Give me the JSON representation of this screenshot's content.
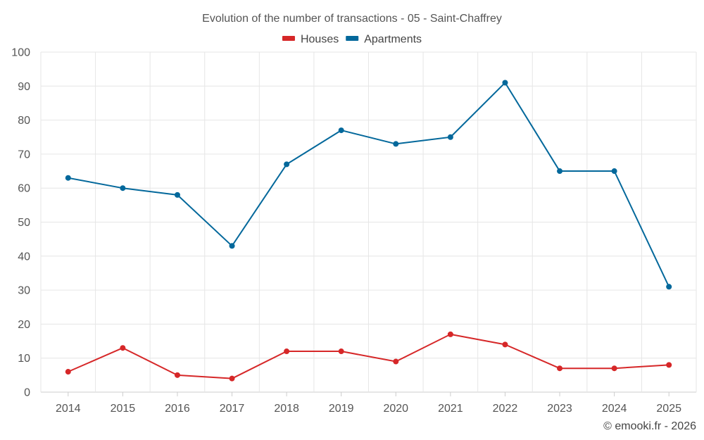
{
  "chart_data": {
    "type": "line",
    "title": "Evolution of the number of transactions - 05 - Saint-Chaffrey",
    "categories": [
      "2014",
      "2015",
      "2016",
      "2017",
      "2018",
      "2019",
      "2020",
      "2021",
      "2022",
      "2023",
      "2024",
      "2025"
    ],
    "series": [
      {
        "name": "Houses",
        "color": "#d62728",
        "values": [
          6,
          13,
          5,
          4,
          12,
          12,
          9,
          17,
          14,
          7,
          7,
          8
        ]
      },
      {
        "name": "Apartments",
        "color": "#03689b",
        "values": [
          63,
          60,
          58,
          43,
          67,
          77,
          73,
          75,
          91,
          65,
          65,
          31
        ]
      }
    ],
    "ylim": [
      0,
      100
    ],
    "yticks": [
      0,
      10,
      20,
      30,
      40,
      50,
      60,
      70,
      80,
      90,
      100
    ],
    "xlabel": "",
    "ylabel": "",
    "grid": true,
    "legend_position": "top-center"
  },
  "credit": "© emooki.fr - 2026"
}
